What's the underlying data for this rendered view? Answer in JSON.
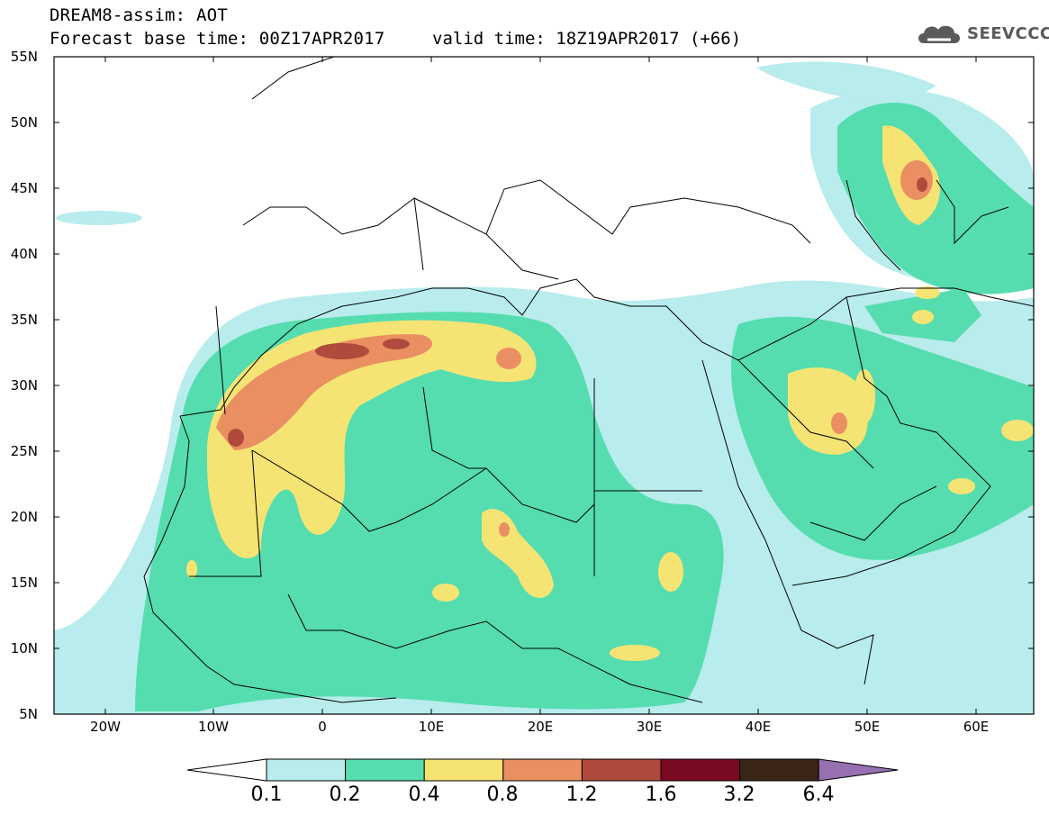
{
  "header": {
    "model_line": "DREAM8-assim: AOT",
    "base_time": "Forecast base time: 00Z17APR2017",
    "valid_time": "valid time: 18Z19APR2017 (+66)",
    "logo_text": "SEEVCCC"
  },
  "map": {
    "lat_range": [
      5,
      55
    ],
    "lon_range": [
      -25,
      65
    ],
    "lat_labels": [
      "55N",
      "50N",
      "45N",
      "40N",
      "35N",
      "30N",
      "25N",
      "20N",
      "15N",
      "10N",
      "5N"
    ],
    "lon_labels": [
      "20W",
      "10W",
      "0",
      "10E",
      "20E",
      "30E",
      "40E",
      "50E",
      "60E"
    ]
  },
  "legend": {
    "labels": [
      "0.1",
      "0.2",
      "0.4",
      "0.8",
      "1.2",
      "1.6",
      "3.2",
      "6.4"
    ],
    "colors": [
      "#ffffff",
      "#b9ecec",
      "#55ddb0",
      "#f5e474",
      "#ea8f62",
      "#b04a3c",
      "#7a0a22",
      "#3a2516",
      "#9670b0"
    ]
  }
}
